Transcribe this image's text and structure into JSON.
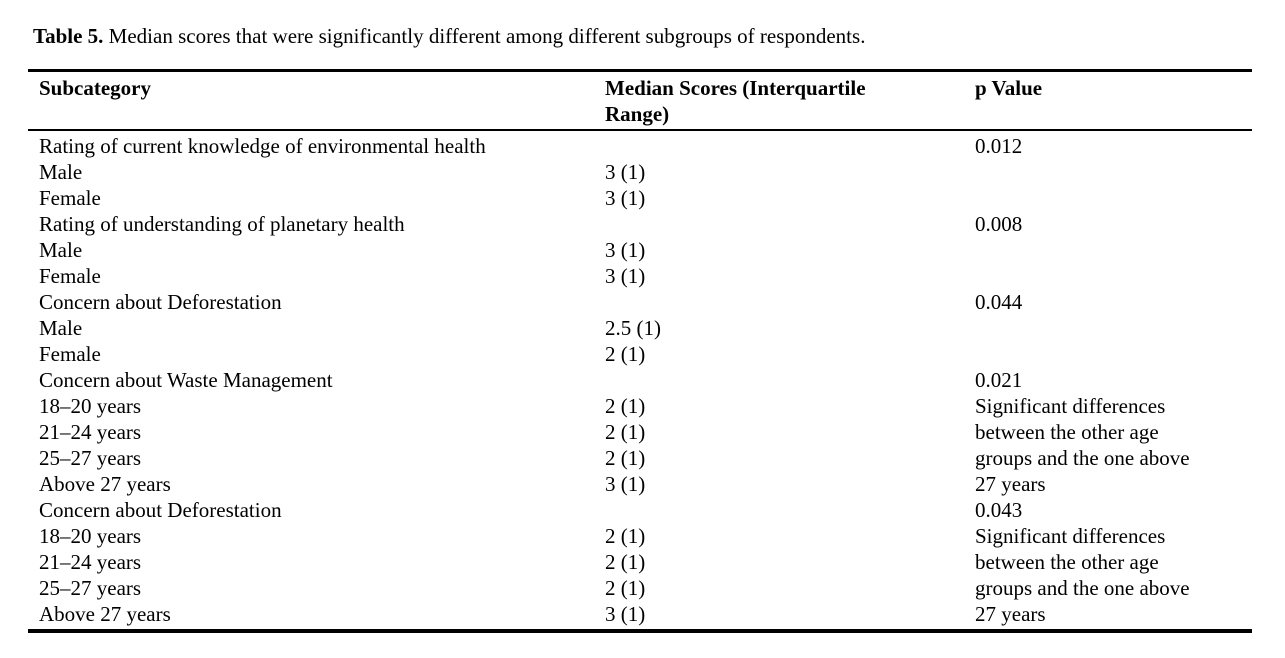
{
  "caption": {
    "label": "Table 5.",
    "text": " Median scores that were significantly different among different subgroups of respondents."
  },
  "table": {
    "header": {
      "subcategory": "Subcategory",
      "median_scores_line1": "Median Scores (Interquartile",
      "median_scores_line2": "Range)",
      "p_value": "p Value"
    },
    "rows": [
      {
        "subcategory": "Rating of current knowledge of environmental health",
        "median": "",
        "p": "0.012"
      },
      {
        "subcategory": "Male",
        "median": "3 (1)",
        "p": ""
      },
      {
        "subcategory": "Female",
        "median": "3 (1)",
        "p": ""
      },
      {
        "subcategory": "Rating of understanding of planetary health",
        "median": "",
        "p": "0.008"
      },
      {
        "subcategory": "Male",
        "median": "3 (1)",
        "p": ""
      },
      {
        "subcategory": "Female",
        "median": "3 (1)",
        "p": ""
      },
      {
        "subcategory": "Concern about Deforestation",
        "median": "",
        "p": "0.044"
      },
      {
        "subcategory": "Male",
        "median": "2.5 (1)",
        "p": ""
      },
      {
        "subcategory": "Female",
        "median": "2 (1)",
        "p": ""
      },
      {
        "subcategory": "Concern about Waste Management",
        "median": "",
        "p": "0.021"
      },
      {
        "subcategory": "18–20 years",
        "median": "2 (1)",
        "p": "Significant differences"
      },
      {
        "subcategory": "21–24 years",
        "median": "2 (1)",
        "p": "between the other age"
      },
      {
        "subcategory": "25–27 years",
        "median": "2 (1)",
        "p": "groups and the one above"
      },
      {
        "subcategory": "Above 27 years",
        "median": "3 (1)",
        "p": "27 years"
      },
      {
        "subcategory": "Concern about Deforestation",
        "median": "",
        "p": "0.043"
      },
      {
        "subcategory": "18–20 years",
        "median": "2 (1)",
        "p": "Significant differences"
      },
      {
        "subcategory": "21–24 years",
        "median": "2 (1)",
        "p": "between the other age"
      },
      {
        "subcategory": "25–27 years",
        "median": "2 (1)",
        "p": "groups and the one above"
      },
      {
        "subcategory": "Above 27 years",
        "median": "3 (1)",
        "p": "27 years"
      }
    ]
  }
}
